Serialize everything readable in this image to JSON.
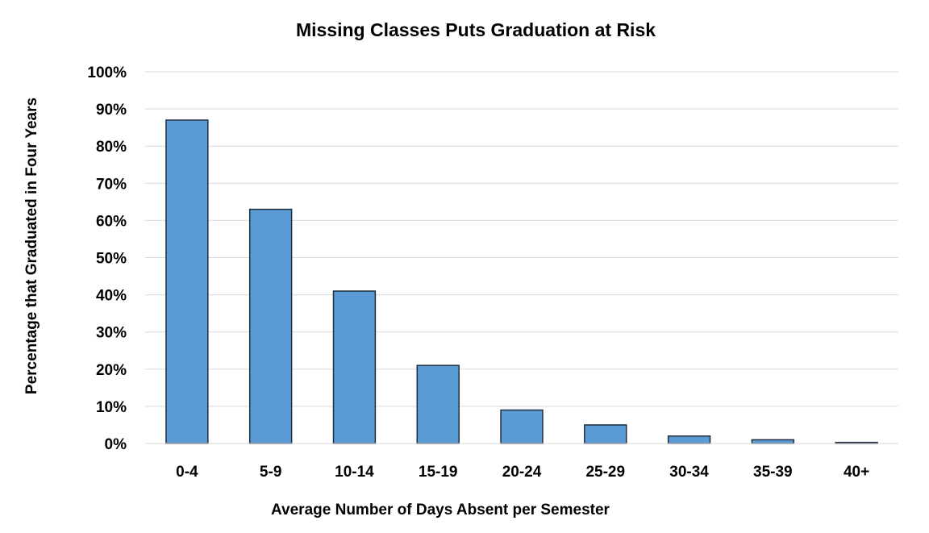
{
  "chart_data": {
    "type": "bar",
    "title": "Missing Classes Puts Graduation at Risk",
    "xlabel": "Average Number of Days Absent per Semester",
    "ylabel": "Percentage that Graduated in Four Years",
    "categories": [
      "0-4",
      "5-9",
      "10-14",
      "15-19",
      "20-24",
      "25-29",
      "30-34",
      "35-39",
      "40+"
    ],
    "values": [
      87,
      63,
      41,
      21,
      9,
      5,
      2,
      1,
      0.3
    ],
    "ylim": [
      0,
      100
    ],
    "yticks": [
      0,
      10,
      20,
      30,
      40,
      50,
      60,
      70,
      80,
      90,
      100
    ],
    "ytick_suffix": "%",
    "grid": true,
    "bar_color": "#5b9bd5",
    "bar_edge_color": "#1f2d3d",
    "grid_color": "#d9d9d9"
  }
}
